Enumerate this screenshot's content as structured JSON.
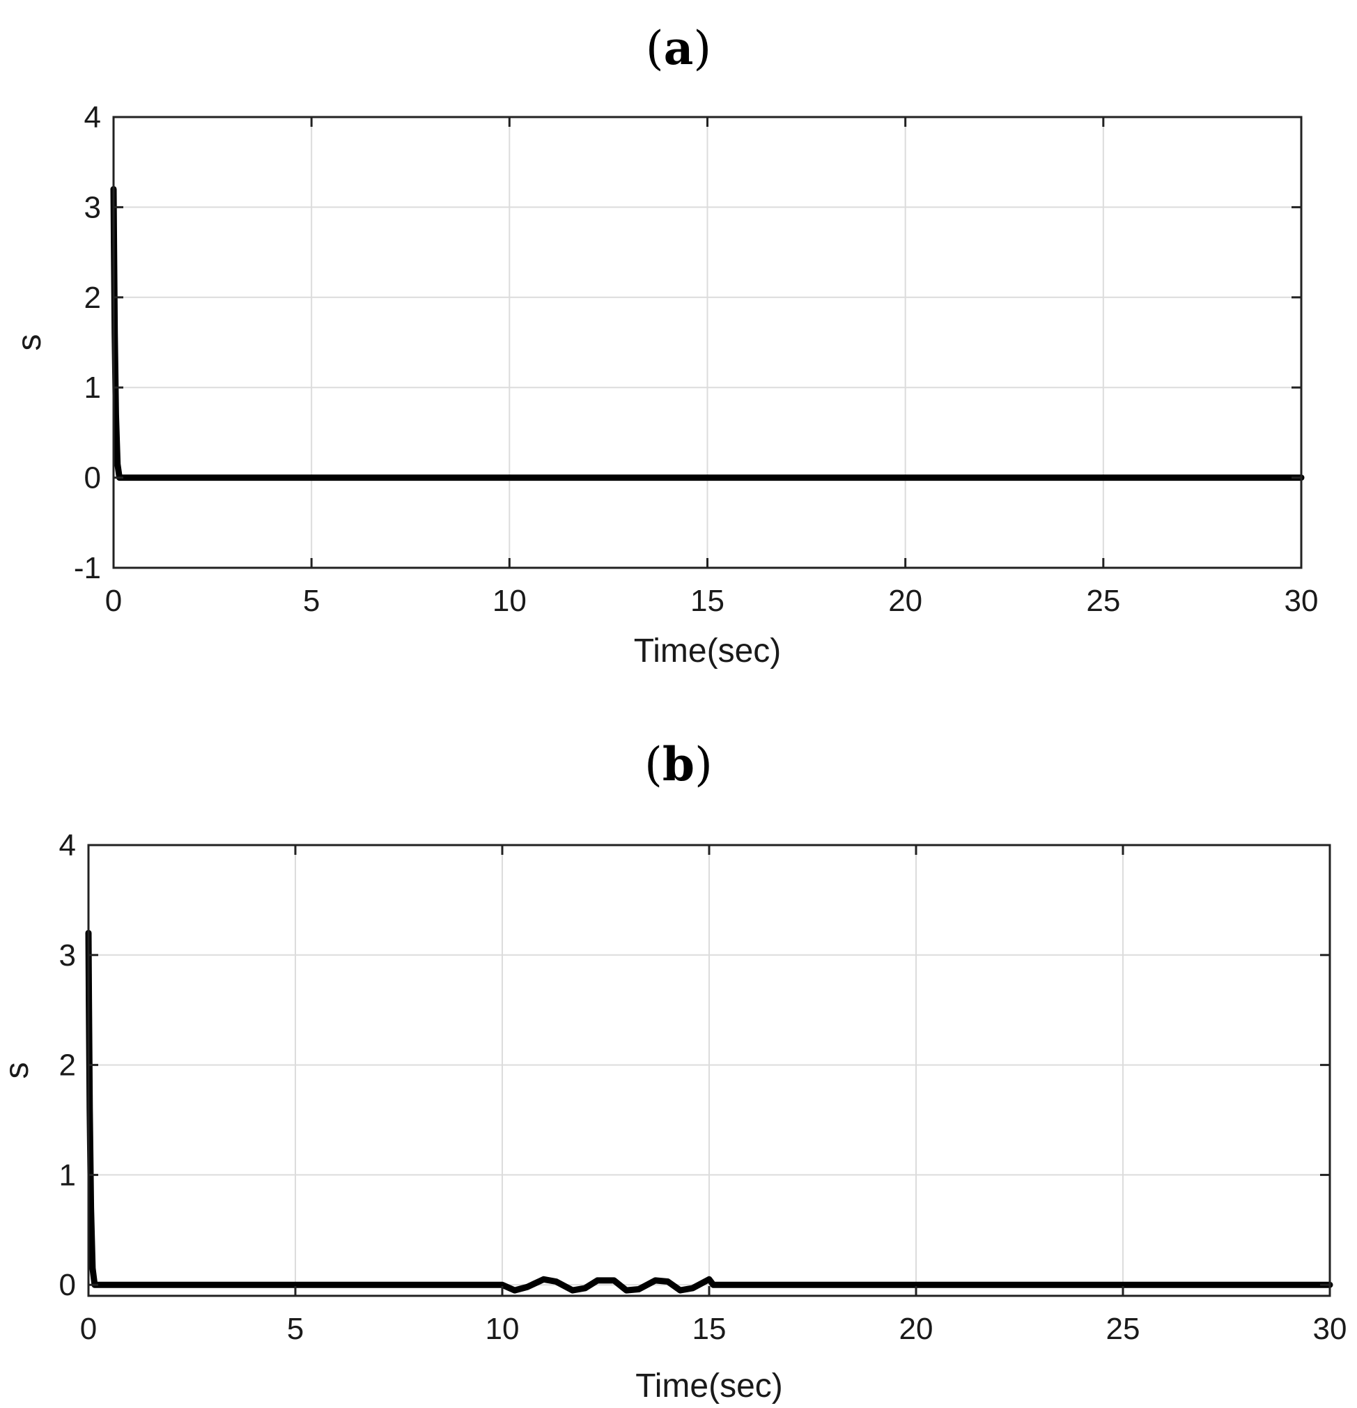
{
  "chart_data": [
    {
      "type": "line",
      "panel_label": "(a)",
      "panel_letter": "a",
      "title": "",
      "xlabel": "Time(sec)",
      "ylabel": "s",
      "xlim": [
        0,
        30
      ],
      "ylim": [
        -1,
        4
      ],
      "x_ticks": [
        0,
        5,
        10,
        15,
        20,
        25,
        30
      ],
      "y_ticks": [
        -1,
        0,
        1,
        2,
        3,
        4
      ],
      "grid": true,
      "series": [
        {
          "color": "#000000",
          "x": [
            0,
            0.01,
            0.03,
            0.06,
            0.1,
            0.15,
            1,
            5,
            10,
            15,
            20,
            25,
            30
          ],
          "y": [
            3.2,
            2.6,
            1.6,
            0.7,
            0.15,
            0.0,
            0.0,
            0.0,
            0.0,
            0.0,
            0.0,
            0.0,
            0.0
          ]
        }
      ]
    },
    {
      "type": "line",
      "panel_label": "(b)",
      "panel_letter": "b",
      "title": "",
      "xlabel": "Time(sec)",
      "ylabel": "s",
      "xlim": [
        0,
        30
      ],
      "ylim": [
        -0.1,
        4
      ],
      "x_ticks": [
        0,
        5,
        10,
        15,
        20,
        25,
        30
      ],
      "y_ticks": [
        0,
        1,
        2,
        3,
        4
      ],
      "grid": true,
      "series": [
        {
          "color": "#000000",
          "x": [
            0,
            0.01,
            0.03,
            0.06,
            0.1,
            0.15,
            1,
            5,
            10,
            10.3,
            10.6,
            11.0,
            11.3,
            11.7,
            12.0,
            12.3,
            12.7,
            13.0,
            13.3,
            13.7,
            14.0,
            14.3,
            14.6,
            15.0,
            15.1,
            16,
            20,
            25,
            30
          ],
          "y": [
            3.2,
            2.6,
            1.6,
            0.7,
            0.15,
            0.0,
            0.0,
            0.0,
            0.0,
            -0.05,
            -0.02,
            0.05,
            0.03,
            -0.05,
            -0.03,
            0.04,
            0.04,
            -0.05,
            -0.04,
            0.04,
            0.03,
            -0.05,
            -0.03,
            0.05,
            0.0,
            0.0,
            0.0,
            0.0,
            0.0
          ]
        }
      ]
    }
  ]
}
